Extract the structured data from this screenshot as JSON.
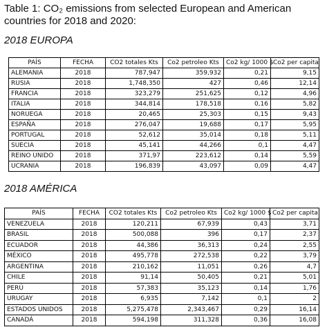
{
  "caption": "Table 1: CO₂ emissions from selected European and American countries for 2018 and 2020:",
  "europe": {
    "title": "2018 EUROPA",
    "headers": [
      "PAÍS",
      "FECHA",
      "CO2 totales Kts",
      "Co2 petroleo Kts",
      "Co2 kg/ 1000 $",
      "Co2 per capita"
    ],
    "rows": [
      [
        "ALEMANIA",
        "2018",
        "787,947",
        "359,932",
        "0,21",
        "9,15"
      ],
      [
        "RUSIA",
        "2018",
        "1,748,350",
        "427",
        "0,46",
        "12,14"
      ],
      [
        "FRANCIA",
        "2018",
        "323,279",
        "251,625",
        "0,12",
        "4,96"
      ],
      [
        "ITALIA",
        "2018",
        "344,814",
        "178,518",
        "0,16",
        "5,82"
      ],
      [
        "NORUEGA",
        "2018",
        "20,465",
        "25,303",
        "0,15",
        "9,43"
      ],
      [
        "ESPAÑA",
        "2018",
        "276,047",
        "19,688",
        "0,17",
        "5,95"
      ],
      [
        "PORTUGAL",
        "2018",
        "52,612",
        "35,014",
        "0,18",
        "5,11"
      ],
      [
        "SUECIA",
        "2018",
        "45,141",
        "44,266",
        "0,1",
        "4,47"
      ],
      [
        "REINO UNIDO",
        "2018",
        "371,97",
        "223,612",
        "0,14",
        "5,59"
      ],
      [
        "UCRANIA",
        "2018",
        "196,839",
        "43,097",
        "0,09",
        "4,47"
      ]
    ]
  },
  "america": {
    "title": "2018 AMÉRICA",
    "headers": [
      "PAÍS",
      "FECHA",
      "CO2 totales Kts",
      "Co2 petroleo Kts",
      "Co2 kg/ 1000 $",
      "Co2 per capita"
    ],
    "rows": [
      [
        "VENEZUELA",
        "2018",
        "120,211",
        "67,939",
        "0,43",
        "3,71"
      ],
      [
        "BRASIL",
        "2018",
        "500,088",
        "396",
        "0,17",
        "2,37"
      ],
      [
        "ECUADOR",
        "2018",
        "44,386",
        "36,313",
        "0,24",
        "2,55"
      ],
      [
        "MÉXICO",
        "2018",
        "495,778",
        "272,538",
        "0,22",
        "3,79"
      ],
      [
        "ARGENTINA",
        "2018",
        "210,162",
        "11,051",
        "0,26",
        "4,7"
      ],
      [
        "CHILE",
        "2018",
        "91,14",
        "50,405",
        "0,21",
        "5,01"
      ],
      [
        "PERÚ",
        "2018",
        "57,383",
        "35,123",
        "0,14",
        "1,76"
      ],
      [
        "URUGAY",
        "2018",
        "6,935",
        "7,142",
        "0,1",
        "2"
      ],
      [
        "ESTADOS UNIDOS",
        "2018",
        "5,275,478",
        "2,343,467",
        "0,29",
        "16,14"
      ],
      [
        "CANADÁ",
        "2018",
        "594,198",
        "311,328",
        "0,36",
        "16,08"
      ]
    ]
  }
}
